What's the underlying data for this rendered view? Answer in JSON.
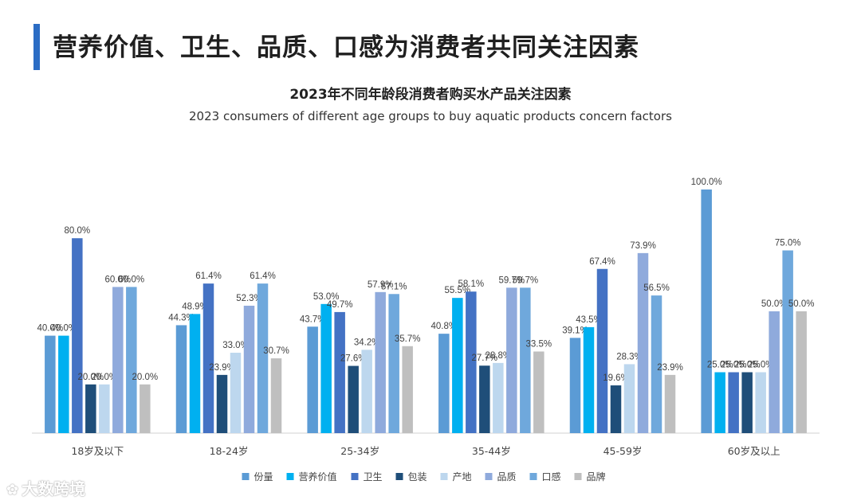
{
  "page": {
    "title": "营养价值、卫生、品质、口感为消费者共同关注因素",
    "accent_color": "#2b6cc4"
  },
  "watermark": {
    "icon": "logo-icon",
    "text": "大数跨境"
  },
  "chart_data": {
    "type": "bar",
    "title": "2023年不同年龄段消费者购买水产品关注因素",
    "subtitle": "2023 consumers of different age groups to buy aquatic products concern factors",
    "xlabel": "",
    "ylabel": "",
    "ylim": [
      0,
      100
    ],
    "grid": false,
    "legend_position": "bottom",
    "categories": [
      "18岁及以下",
      "18-24岁",
      "25-34岁",
      "35-44岁",
      "45-59岁",
      "60岁及以上"
    ],
    "series": [
      {
        "name": "份量",
        "color": "#5b9bd5",
        "values": [
          40.0,
          44.3,
          43.7,
          40.8,
          39.1,
          100.0
        ]
      },
      {
        "name": "营养价值",
        "color": "#00b0f0",
        "values": [
          40.0,
          48.9,
          53.0,
          55.5,
          43.5,
          25.0
        ]
      },
      {
        "name": "卫生",
        "color": "#4472c4",
        "values": [
          80.0,
          61.4,
          49.7,
          58.1,
          67.4,
          25.0
        ]
      },
      {
        "name": "包装",
        "color": "#1f4e79",
        "values": [
          20.0,
          23.9,
          27.6,
          27.7,
          19.6,
          25.0
        ]
      },
      {
        "name": "产地",
        "color": "#bdd7ee",
        "values": [
          20.0,
          33.0,
          34.2,
          28.8,
          28.3,
          25.0
        ]
      },
      {
        "name": "品质",
        "color": "#8faadc",
        "values": [
          60.0,
          52.3,
          57.9,
          59.7,
          73.9,
          50.0
        ]
      },
      {
        "name": "口感",
        "color": "#6fa8dc",
        "values": [
          60.0,
          61.4,
          57.1,
          59.7,
          56.5,
          75.0
        ]
      },
      {
        "name": "品牌",
        "color": "#bfbfbf",
        "values": [
          20.0,
          30.7,
          35.7,
          33.5,
          23.9,
          50.0
        ]
      }
    ]
  }
}
